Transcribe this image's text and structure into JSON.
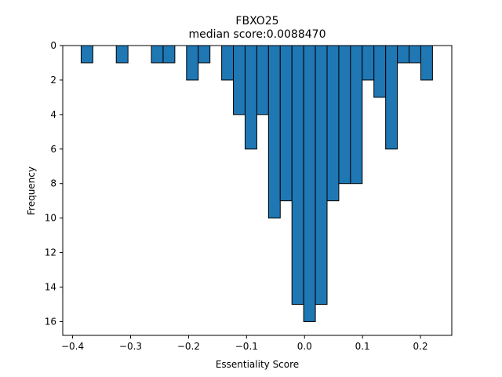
{
  "chart_data": {
    "type": "bar",
    "title": "FBXO25",
    "subtitle": "median score:0.0088470",
    "xlabel": "Essentiality Score",
    "ylabel": "Frequency",
    "y_inverted": true,
    "xlim": [
      -0.417,
      0.254
    ],
    "ylim": [
      0,
      16.8
    ],
    "x_ticks": [
      -0.4,
      -0.3,
      -0.2,
      -0.1,
      0.0,
      0.1,
      0.2
    ],
    "x_tick_labels": [
      "−0.4",
      "−0.3",
      "−0.2",
      "−0.1",
      "0.0",
      "0.1",
      "0.2"
    ],
    "y_ticks": [
      0,
      2,
      4,
      6,
      8,
      10,
      12,
      14,
      16
    ],
    "y_tick_labels": [
      "0",
      "2",
      "4",
      "6",
      "8",
      "10",
      "12",
      "14",
      "16"
    ],
    "bin_width": 0.0202,
    "bins": [
      {
        "x0": -0.3853,
        "count": 1
      },
      {
        "x0": -0.3247,
        "count": 1
      },
      {
        "x0": -0.2641,
        "count": 1
      },
      {
        "x0": -0.2439,
        "count": 1
      },
      {
        "x0": -0.2035,
        "count": 2
      },
      {
        "x0": -0.1833,
        "count": 1
      },
      {
        "x0": -0.1429,
        "count": 2
      },
      {
        "x0": -0.1227,
        "count": 4
      },
      {
        "x0": -0.1025,
        "count": 6
      },
      {
        "x0": -0.0823,
        "count": 4
      },
      {
        "x0": -0.0621,
        "count": 10
      },
      {
        "x0": -0.0419,
        "count": 9
      },
      {
        "x0": -0.0217,
        "count": 15
      },
      {
        "x0": -0.0015,
        "count": 16
      },
      {
        "x0": 0.0187,
        "count": 15
      },
      {
        "x0": 0.0389,
        "count": 9
      },
      {
        "x0": 0.0591,
        "count": 8
      },
      {
        "x0": 0.0793,
        "count": 8
      },
      {
        "x0": 0.0995,
        "count": 2
      },
      {
        "x0": 0.1197,
        "count": 3
      },
      {
        "x0": 0.1399,
        "count": 6
      },
      {
        "x0": 0.1601,
        "count": 1
      },
      {
        "x0": 0.1803,
        "count": 1
      },
      {
        "x0": 0.2005,
        "count": 2
      }
    ],
    "colors": {
      "bar_fill": "#1f77b4",
      "bar_edge": "#000000"
    }
  }
}
